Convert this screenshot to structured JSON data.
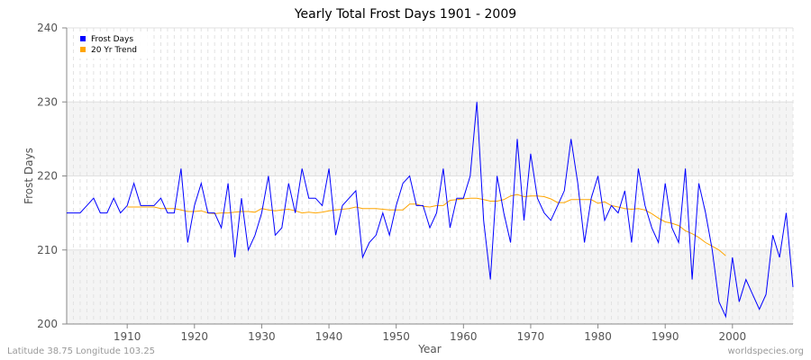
{
  "chart_data": {
    "type": "line",
    "title": "Yearly Total Frost Days 1901 - 2009",
    "xlabel": "Year",
    "ylabel": "Frost Days",
    "xlim": [
      1901,
      2009
    ],
    "ylim": [
      200,
      240
    ],
    "xticks": [
      1910,
      1920,
      1930,
      1940,
      1950,
      1960,
      1970,
      1980,
      1990,
      2000
    ],
    "yticks": [
      200,
      210,
      220,
      230,
      240
    ],
    "grid": true,
    "legend_position": "top-left",
    "series": [
      {
        "name": "Frost Days",
        "color": "#0000ff",
        "x_start": 1901,
        "values": [
          215,
          215,
          215,
          216,
          217,
          215,
          215,
          217,
          215,
          216,
          219,
          216,
          216,
          216,
          217,
          215,
          215,
          221,
          211,
          216,
          219,
          215,
          215,
          213,
          219,
          209,
          217,
          210,
          212,
          215,
          220,
          212,
          213,
          219,
          215,
          221,
          217,
          217,
          216,
          221,
          212,
          216,
          217,
          218,
          209,
          211,
          212,
          215,
          212,
          216,
          219,
          220,
          216,
          216,
          213,
          215,
          221,
          213,
          217,
          217,
          220,
          230,
          214,
          206,
          220,
          215,
          211,
          225,
          214,
          223,
          217,
          215,
          214,
          216,
          218,
          225,
          219,
          211,
          217,
          220,
          214,
          216,
          215,
          218,
          211,
          221,
          216,
          213,
          211,
          219,
          213,
          211,
          221,
          206,
          219,
          215,
          210,
          203,
          201,
          209,
          203,
          206,
          204,
          202,
          204,
          212,
          209,
          215,
          205
        ]
      },
      {
        "name": "20 Yr Trend",
        "color": "#ffa500",
        "x_start": 1910,
        "values": [
          215.8,
          215.8,
          215.8,
          215.8,
          215.8,
          215.6,
          215.6,
          215.6,
          215.4,
          215.2,
          215.2,
          215.3,
          215.0,
          214.9,
          215.0,
          215.0,
          215.1,
          215.2,
          215.2,
          215.1,
          215.6,
          215.4,
          215.3,
          215.4,
          215.5,
          215.3,
          215.0,
          215.1,
          215.0,
          215.1,
          215.3,
          215.4,
          215.5,
          215.6,
          215.8,
          215.6,
          215.6,
          215.6,
          215.5,
          215.4,
          215.4,
          215.4,
          216.2,
          216.2,
          215.9,
          215.8,
          216.0,
          216.0,
          216.7,
          216.8,
          216.9,
          217.0,
          217.0,
          216.8,
          216.6,
          216.6,
          216.8,
          217.3,
          217.5,
          217.2,
          217.3,
          217.3,
          217.2,
          216.9,
          216.4,
          216.4,
          216.8,
          216.8,
          216.8,
          216.8,
          216.3,
          216.5,
          216.0,
          215.8,
          215.6,
          215.5,
          215.6,
          215.4,
          214.9,
          214.3,
          213.8,
          213.6,
          213.3,
          212.6,
          212.2,
          211.7,
          211.0,
          210.5,
          210.0,
          209.2
        ]
      }
    ]
  },
  "footer": {
    "location": "Latitude 38.75 Longitude 103.25",
    "source": "worldspecies.org"
  }
}
